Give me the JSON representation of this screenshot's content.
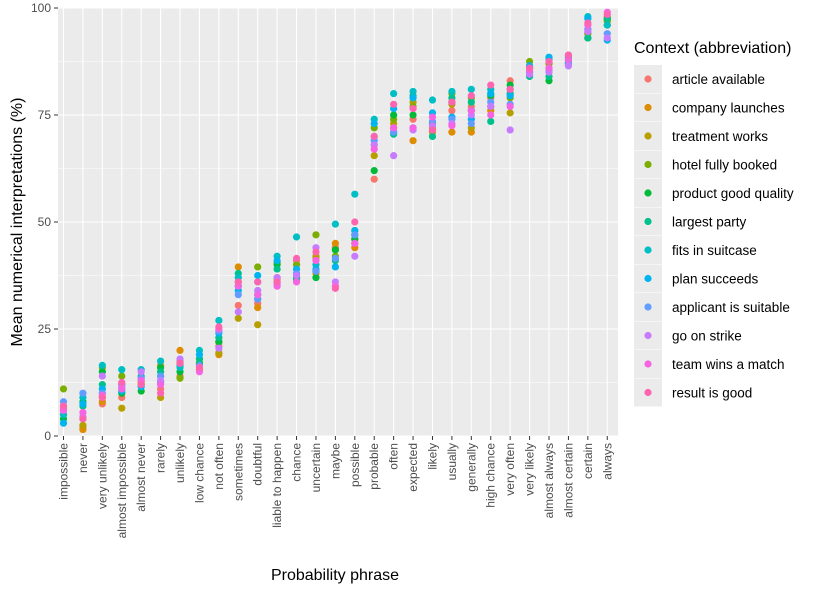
{
  "chart_data": {
    "type": "scatter",
    "xlabel": "Probability phrase",
    "ylabel": "Mean numerical interpretations (%)",
    "ylim": [
      0,
      100
    ],
    "yticks": [
      0,
      25,
      50,
      75,
      100
    ],
    "grid": true,
    "legend_position": "right",
    "legend_title": "Context (abbreviation)",
    "categories": [
      "impossible",
      "never",
      "very unlikely",
      "almost impossible",
      "almost never",
      "rarely",
      "unlikely",
      "low chance",
      "not often",
      "sometimes",
      "doubtful",
      "liable to happen",
      "chance",
      "uncertain",
      "maybe",
      "possible",
      "probable",
      "often",
      "expected",
      "likely",
      "usually",
      "generally",
      "high chance",
      "very often",
      "very likely",
      "almost always",
      "almost certain",
      "certain",
      "always"
    ],
    "series": [
      {
        "name": "article available",
        "color": "#F8766D",
        "values": [
          6.5,
          2.0,
          7.5,
          9.0,
          12.0,
          11.0,
          14.0,
          16.5,
          21.0,
          30.5,
          31.0,
          36.0,
          41.0,
          41.5,
          44.0,
          46.0,
          60.0,
          71.0,
          74.0,
          73.0,
          76.0,
          77.0,
          79.0,
          83.0,
          85.0,
          88.0,
          89.0,
          95.0,
          98.0
        ]
      },
      {
        "name": "company launches",
        "color": "#DE8C00",
        "values": [
          5.0,
          1.5,
          8.0,
          12.0,
          12.5,
          16.5,
          20.0,
          15.5,
          19.0,
          39.5,
          30.0,
          37.0,
          37.0,
          38.0,
          45.0,
          44.0,
          68.0,
          72.0,
          69.0,
          71.0,
          71.0,
          71.0,
          76.0,
          80.0,
          85.0,
          86.0,
          87.0,
          93.0,
          96.0
        ]
      },
      {
        "name": "treatment works",
        "color": "#B79F00",
        "values": [
          7.0,
          2.5,
          9.0,
          6.5,
          13.0,
          9.0,
          17.5,
          17.0,
          19.5,
          27.5,
          26.0,
          36.5,
          40.0,
          42.0,
          43.5,
          45.0,
          65.5,
          73.0,
          78.0,
          72.0,
          77.5,
          72.0,
          77.0,
          75.5,
          86.0,
          87.0,
          88.0,
          94.0,
          97.0
        ]
      },
      {
        "name": "hotel fully booked",
        "color": "#7CAE00",
        "values": [
          11.0,
          4.0,
          16.0,
          14.0,
          12.0,
          14.0,
          13.5,
          18.0,
          22.0,
          36.0,
          39.5,
          40.5,
          40.0,
          47.0,
          42.0,
          48.0,
          72.0,
          74.0,
          77.0,
          71.5,
          80.0,
          79.0,
          80.0,
          79.0,
          87.5,
          87.0,
          87.5,
          94.0,
          97.0
        ]
      },
      {
        "name": "product good quality",
        "color": "#00BA38",
        "values": [
          4.0,
          8.0,
          15.0,
          10.0,
          10.5,
          16.0,
          15.0,
          17.0,
          22.0,
          35.0,
          32.0,
          40.0,
          37.0,
          37.0,
          43.5,
          46.0,
          62.0,
          75.0,
          75.0,
          73.0,
          78.0,
          76.0,
          79.5,
          82.0,
          86.0,
          83.0,
          87.0,
          93.0,
          97.5
        ]
      },
      {
        "name": "largest party",
        "color": "#00C08B",
        "values": [
          6.0,
          7.0,
          12.0,
          11.0,
          14.0,
          15.0,
          16.5,
          18.0,
          23.0,
          38.0,
          33.0,
          39.0,
          36.5,
          38.5,
          41.0,
          47.0,
          70.0,
          70.5,
          79.5,
          70.0,
          79.0,
          78.0,
          73.5,
          80.0,
          84.0,
          84.0,
          86.5,
          93.0,
          97.5
        ]
      },
      {
        "name": "fits in suitcase",
        "color": "#00BFC4",
        "values": [
          5.0,
          9.0,
          16.5,
          15.5,
          15.5,
          17.5,
          16.0,
          20.0,
          27.0,
          37.0,
          36.0,
          42.0,
          46.5,
          40.0,
          49.5,
          56.5,
          74.0,
          80.0,
          80.5,
          78.5,
          80.5,
          81.0,
          81.0,
          81.0,
          86.0,
          88.0,
          88.5,
          98.0,
          96.0
        ]
      },
      {
        "name": "plan succeeds",
        "color": "#00B4F0",
        "values": [
          3.0,
          7.5,
          11.0,
          10.5,
          11.5,
          12.5,
          17.0,
          19.0,
          24.0,
          34.0,
          37.5,
          41.0,
          39.0,
          39.0,
          39.5,
          48.0,
          73.0,
          76.5,
          79.0,
          75.5,
          74.5,
          74.0,
          80.0,
          79.5,
          86.5,
          88.5,
          88.0,
          97.5,
          92.5
        ]
      },
      {
        "name": "applicant is suitable",
        "color": "#619CFF",
        "values": [
          8.0,
          10.0,
          10.0,
          12.0,
          13.5,
          14.0,
          17.0,
          16.5,
          24.5,
          33.0,
          32.0,
          35.5,
          38.0,
          38.5,
          41.5,
          47.0,
          69.0,
          71.0,
          72.0,
          73.5,
          74.0,
          73.0,
          78.0,
          77.5,
          85.0,
          85.5,
          87.0,
          95.0,
          94.0
        ]
      },
      {
        "name": "go on strike",
        "color": "#C77CFF",
        "values": [
          6.0,
          4.5,
          14.0,
          11.5,
          15.0,
          13.0,
          18.0,
          16.0,
          20.5,
          29.0,
          34.0,
          37.0,
          37.5,
          44.0,
          36.0,
          42.0,
          68.0,
          65.5,
          71.5,
          72.5,
          73.0,
          75.0,
          77.0,
          71.5,
          84.5,
          85.0,
          86.5,
          94.5,
          93.0
        ]
      },
      {
        "name": "team wins a match",
        "color": "#F564E3",
        "values": [
          6.0,
          5.5,
          9.5,
          11.0,
          13.0,
          12.0,
          17.0,
          15.0,
          25.0,
          35.0,
          33.0,
          35.0,
          36.0,
          41.0,
          35.0,
          45.0,
          67.0,
          72.0,
          72.0,
          74.5,
          72.5,
          76.0,
          75.0,
          77.0,
          85.5,
          86.0,
          88.0,
          96.0,
          99.0
        ]
      },
      {
        "name": "result is good",
        "color": "#FF64B0",
        "values": [
          7.0,
          4.0,
          9.0,
          12.5,
          12.0,
          10.0,
          17.0,
          16.0,
          25.5,
          36.0,
          36.0,
          36.0,
          41.5,
          43.0,
          34.5,
          50.0,
          70.0,
          77.5,
          76.5,
          71.5,
          78.0,
          79.5,
          82.0,
          81.0,
          86.0,
          87.5,
          89.0,
          96.5,
          98.5
        ]
      }
    ]
  }
}
